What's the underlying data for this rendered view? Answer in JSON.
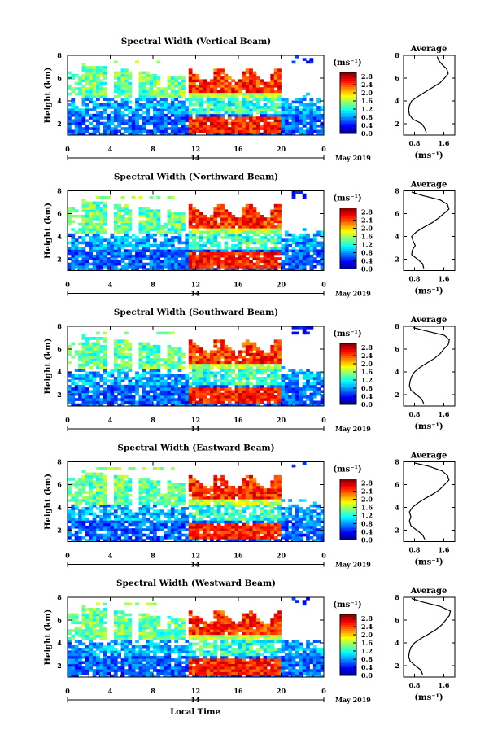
{
  "page": {
    "xlabel": "Local Time",
    "date_label": "May 2019"
  },
  "chart_data": [
    {
      "type": "heatmap",
      "title": "Spectral Width (Vertical Beam)",
      "ylabel": "Height (km)",
      "xlabel": "Local Time",
      "x_ticks": [
        "0",
        "4",
        "8",
        "12",
        "16",
        "20",
        "0"
      ],
      "x_range_hours": [
        0,
        24
      ],
      "date_tick": "14",
      "date_label": "May 2019",
      "y_ticks": [
        "2",
        "4",
        "6",
        "8"
      ],
      "ylim": [
        1,
        8
      ],
      "colorbar": {
        "label": "(ms⁻¹)",
        "ticks": [
          "0.0",
          "0.4",
          "0.8",
          "1.2",
          "1.6",
          "2.0",
          "2.4",
          "2.8"
        ],
        "range": [
          0,
          3.0
        ]
      },
      "profile": {
        "title": "Average",
        "xlabel": "(ms⁻¹)",
        "x_ticks": [
          "0.8",
          "1.6"
        ],
        "xlim": [
          0.5,
          1.9
        ],
        "y_ticks": [
          "2",
          "4",
          "6",
          "8"
        ],
        "ylim": [
          1,
          8
        ],
        "height": [
          1.2,
          1.6,
          2.0,
          2.4,
          2.8,
          3.2,
          3.6,
          4.0,
          4.4,
          4.8,
          5.2,
          5.6,
          6.0,
          6.4,
          6.8,
          7.2,
          7.6,
          7.9
        ],
        "value": [
          1.12,
          1.08,
          1.0,
          0.75,
          0.66,
          0.64,
          0.66,
          0.72,
          0.9,
          1.1,
          1.3,
          1.5,
          1.62,
          1.72,
          1.68,
          1.55,
          1.45,
          1.42
        ]
      }
    },
    {
      "type": "heatmap",
      "title": "Spectral Width (Northward Beam)",
      "ylabel": "Height (km)",
      "xlabel": "Local Time",
      "x_ticks": [
        "0",
        "4",
        "8",
        "12",
        "16",
        "20",
        "0"
      ],
      "x_range_hours": [
        0,
        24
      ],
      "date_tick": "14",
      "date_label": "May 2019",
      "y_ticks": [
        "2",
        "4",
        "6",
        "8"
      ],
      "ylim": [
        1,
        8
      ],
      "colorbar": {
        "label": "(ms⁻¹)",
        "ticks": [
          "0.0",
          "0.4",
          "0.8",
          "1.2",
          "1.6",
          "2.0",
          "2.4",
          "2.8"
        ],
        "range": [
          0,
          3.0
        ]
      },
      "profile": {
        "title": "Average",
        "xlabel": "(ms⁻¹)",
        "x_ticks": [
          "0.8",
          "1.6"
        ],
        "xlim": [
          0.5,
          1.9
        ],
        "height": [
          1.2,
          1.6,
          2.0,
          2.4,
          2.8,
          3.2,
          3.6,
          4.0,
          4.4,
          4.8,
          5.2,
          5.6,
          6.0,
          6.4,
          6.8,
          7.2,
          7.6,
          7.9
        ],
        "value": [
          1.05,
          1.02,
          0.88,
          0.72,
          0.74,
          0.82,
          0.76,
          0.72,
          0.85,
          1.05,
          1.28,
          1.45,
          1.6,
          1.74,
          1.7,
          1.5,
          1.0,
          0.72
        ]
      }
    },
    {
      "type": "heatmap",
      "title": "Spectral Width (Southward Beam)",
      "ylabel": "Height (km)",
      "xlabel": "Local Time",
      "x_ticks": [
        "0",
        "4",
        "8",
        "12",
        "16",
        "20",
        "0"
      ],
      "x_range_hours": [
        0,
        24
      ],
      "date_tick": "14",
      "date_label": "May 2019",
      "y_ticks": [
        "2",
        "4",
        "6",
        "8"
      ],
      "ylim": [
        1,
        8
      ],
      "colorbar": {
        "label": "(ms⁻¹)",
        "ticks": [
          "0.0",
          "0.4",
          "0.8",
          "1.2",
          "1.6",
          "2.0",
          "2.4",
          "2.8"
        ],
        "range": [
          0,
          3.0
        ]
      },
      "profile": {
        "title": "Average",
        "xlabel": "(ms⁻¹)",
        "x_ticks": [
          "0.8",
          "1.6"
        ],
        "xlim": [
          0.5,
          1.9
        ],
        "height": [
          1.2,
          1.6,
          2.0,
          2.4,
          2.8,
          3.2,
          3.6,
          4.0,
          4.4,
          4.8,
          5.2,
          5.6,
          6.0,
          6.4,
          6.8,
          7.2,
          7.6,
          7.9
        ],
        "value": [
          1.05,
          1.0,
          0.85,
          0.7,
          0.66,
          0.68,
          0.72,
          0.8,
          0.95,
          1.15,
          1.35,
          1.5,
          1.6,
          1.72,
          1.75,
          1.62,
          1.1,
          0.75
        ]
      }
    },
    {
      "type": "heatmap",
      "title": "Spectral Width (Eastward Beam)",
      "ylabel": "Height (km)",
      "xlabel": "Local Time",
      "x_ticks": [
        "0",
        "4",
        "8",
        "12",
        "16",
        "20",
        "0"
      ],
      "x_range_hours": [
        0,
        24
      ],
      "date_tick": "14",
      "date_label": "May 2019",
      "y_ticks": [
        "2",
        "4",
        "6",
        "8"
      ],
      "ylim": [
        1,
        8
      ],
      "colorbar": {
        "label": "(ms⁻¹)",
        "ticks": [
          "0.0",
          "0.4",
          "0.8",
          "1.2",
          "1.6",
          "2.0",
          "2.4",
          "2.8"
        ],
        "range": [
          0,
          3.0
        ]
      },
      "profile": {
        "title": "Average",
        "xlabel": "(ms⁻¹)",
        "x_ticks": [
          "0.8",
          "1.6"
        ],
        "xlim": [
          0.5,
          1.9
        ],
        "height": [
          1.2,
          1.6,
          2.0,
          2.4,
          2.8,
          3.2,
          3.6,
          4.0,
          4.4,
          4.8,
          5.2,
          5.6,
          6.0,
          6.4,
          6.8,
          7.2,
          7.6,
          7.9
        ],
        "value": [
          1.08,
          1.02,
          0.86,
          0.7,
          0.66,
          0.7,
          0.66,
          0.74,
          0.9,
          1.1,
          1.32,
          1.5,
          1.62,
          1.74,
          1.7,
          1.55,
          1.2,
          0.8
        ]
      }
    },
    {
      "type": "heatmap",
      "title": "Spectral Width (Westward Beam)",
      "ylabel": "Height (km)",
      "xlabel": "Local Time",
      "x_ticks": [
        "0",
        "4",
        "8",
        "12",
        "16",
        "20",
        "0"
      ],
      "x_range_hours": [
        0,
        24
      ],
      "date_tick": "14",
      "date_label": "May 2019",
      "y_ticks": [
        "2",
        "4",
        "6",
        "8"
      ],
      "ylim": [
        1,
        8
      ],
      "colorbar": {
        "label": "(ms⁻¹)",
        "ticks": [
          "0.0",
          "0.4",
          "0.8",
          "1.2",
          "1.6",
          "2.0",
          "2.4",
          "2.8"
        ],
        "range": [
          0,
          3.0
        ]
      },
      "profile": {
        "title": "Average",
        "xlabel": "(ms⁻¹)",
        "x_ticks": [
          "0.8",
          "1.6"
        ],
        "xlim": [
          0.5,
          1.9
        ],
        "height": [
          1.2,
          1.6,
          2.0,
          2.4,
          2.8,
          3.2,
          3.6,
          4.0,
          4.4,
          4.8,
          5.2,
          5.6,
          6.0,
          6.4,
          6.8,
          7.2,
          7.6,
          7.9
        ],
        "value": [
          1.02,
          0.98,
          0.82,
          0.68,
          0.64,
          0.66,
          0.7,
          0.8,
          0.98,
          1.2,
          1.4,
          1.55,
          1.65,
          1.75,
          1.78,
          1.5,
          1.0,
          0.72
        ]
      }
    }
  ]
}
